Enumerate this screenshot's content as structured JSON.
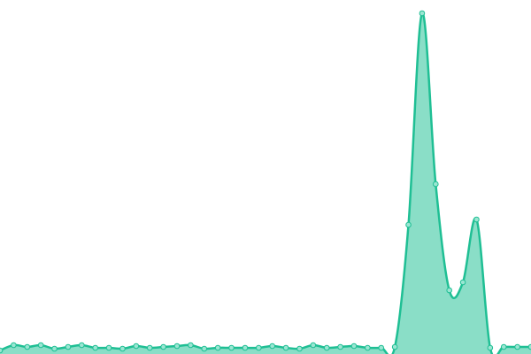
{
  "chart_data": {
    "type": "area",
    "color": "#1fbf94",
    "values": [
      4,
      10,
      8,
      10,
      6,
      8,
      10,
      7,
      7,
      6,
      9,
      7,
      8,
      9,
      10,
      6,
      7,
      7,
      7,
      7,
      9,
      7,
      6,
      10,
      7,
      8,
      9,
      7,
      7,
      8,
      146,
      385,
      192,
      72,
      81,
      152,
      7,
      8,
      8,
      8
    ]
  }
}
